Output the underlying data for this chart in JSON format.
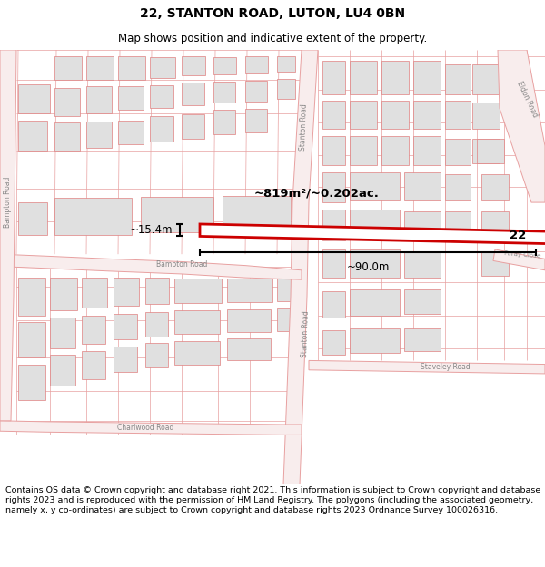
{
  "title_line1": "22, STANTON ROAD, LUTON, LU4 0BN",
  "title_line2": "Map shows position and indicative extent of the property.",
  "copyright_text": "Contains OS data © Crown copyright and database right 2021. This information is subject to Crown copyright and database rights 2023 and is reproduced with the permission of HM Land Registry. The polygons (including the associated geometry, namely x, y co-ordinates) are subject to Crown copyright and database rights 2023 Ordnance Survey 100026316.",
  "map_bg": "#ffffff",
  "road_line_color": "#e8a0a0",
  "road_fill_color": "#f8eded",
  "block_color": "#e0e0e0",
  "block_edge_color": "#e08080",
  "highlight_color": "#cc0000",
  "area_text": "~819m²/~0.202ac.",
  "width_text": "~90.0m",
  "height_text": "~15.4m",
  "property_label": "22",
  "title_fontsize": 10,
  "subtitle_fontsize": 8.5,
  "copyright_fontsize": 6.8,
  "label_color": "#888888",
  "label_fontsize": 5.5
}
